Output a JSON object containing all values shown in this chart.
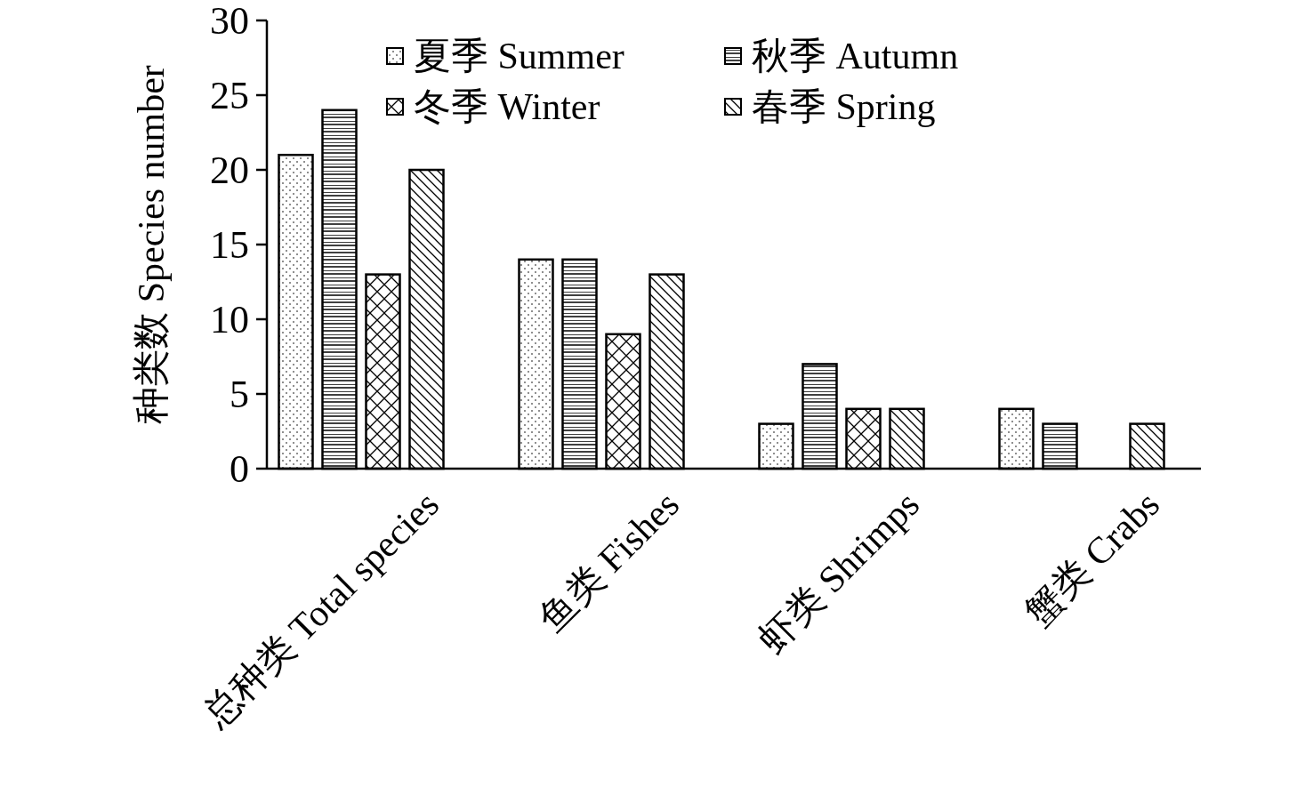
{
  "chart_data": {
    "type": "bar",
    "ylabel": "种类数 Species number",
    "categories": [
      "总种类 Total species",
      "鱼类 Fishes",
      "虾类 Shrimps",
      "蟹类 Crabs"
    ],
    "series": [
      {
        "name": "夏季 Summer",
        "color": "#000000",
        "values": [
          21,
          14,
          3,
          4
        ]
      },
      {
        "name": "秋季 Autumn",
        "color": "#000000",
        "values": [
          24,
          14,
          7,
          3
        ]
      },
      {
        "name": "冬季 Winter",
        "color": "#000000",
        "values": [
          13,
          9,
          4,
          0
        ]
      },
      {
        "name": "春季 Spring",
        "color": "#000000",
        "values": [
          20,
          13,
          4,
          3
        ]
      }
    ],
    "ylim": [
      0,
      30
    ],
    "yticks": [
      0,
      5,
      10,
      15,
      20,
      25,
      30
    ],
    "legend": "top",
    "grid": false
  }
}
